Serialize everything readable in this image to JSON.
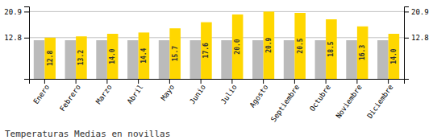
{
  "chart_data": {
    "type": "bar",
    "title": "Temperaturas Medias en novillas",
    "categories": [
      "Enero",
      "Febrero",
      "Marzo",
      "Abril",
      "Mayo",
      "Junio",
      "Julio",
      "Agosto",
      "Septiembre",
      "Octubre",
      "Noviembre",
      "Diciembre"
    ],
    "series": [
      {
        "color": "#BBBBBB",
        "values": [
          12.0,
          12.0,
          12.0,
          12.0,
          12.0,
          12.0,
          12.0,
          12.0,
          12.0,
          12.0,
          12.0,
          12.0
        ]
      },
      {
        "color": "#FFD700",
        "values": [
          12.8,
          13.2,
          14.0,
          14.4,
          15.7,
          17.6,
          20.0,
          20.9,
          20.5,
          18.5,
          16.3,
          14.0
        ],
        "value_labels": [
          "12.8",
          "13.2",
          "14.0",
          "14.4",
          "15.7",
          "17.6",
          "20.0",
          "20.9",
          "20.5",
          "18.5",
          "16.3",
          "14.0"
        ],
        "data_labels": true
      }
    ],
    "ylim": [
      0,
      22.5
    ],
    "yticks": [
      12.8,
      20.9
    ],
    "y2lim": [
      0,
      22.5
    ],
    "y2ticks": [
      12.8,
      20.9
    ],
    "grid": true
  }
}
